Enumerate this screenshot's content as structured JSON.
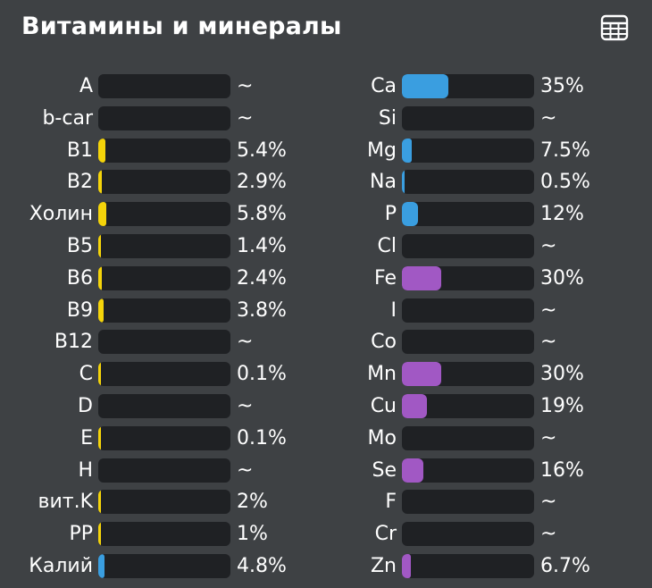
{
  "header": {
    "title": "Витамины и минералы",
    "table_icon": "table-grid-icon"
  },
  "colors": {
    "yellow": "#f5d40a",
    "blue": "#3a9ee0",
    "purple": "#a158c4"
  },
  "vitamins": [
    {
      "label": "A",
      "value": "~",
      "level": 0,
      "color": "yellow"
    },
    {
      "label": "b-car",
      "value": "~",
      "level": 0,
      "color": "yellow"
    },
    {
      "label": "B1",
      "value": "5.4%",
      "level": 0.054,
      "color": "yellow"
    },
    {
      "label": "B2",
      "value": "2.9%",
      "level": 0.029,
      "color": "yellow"
    },
    {
      "label": "Холин",
      "value": "5.8%",
      "level": 0.058,
      "color": "yellow"
    },
    {
      "label": "B5",
      "value": "1.4%",
      "level": 0.014,
      "color": "yellow"
    },
    {
      "label": "B6",
      "value": "2.4%",
      "level": 0.024,
      "color": "yellow"
    },
    {
      "label": "B9",
      "value": "3.8%",
      "level": 0.038,
      "color": "yellow"
    },
    {
      "label": "B12",
      "value": "~",
      "level": 0,
      "color": "yellow"
    },
    {
      "label": "C",
      "value": "0.1%",
      "level": 0.001,
      "color": "yellow"
    },
    {
      "label": "D",
      "value": "~",
      "level": 0,
      "color": "yellow"
    },
    {
      "label": "E",
      "value": "0.1%",
      "level": 0.001,
      "color": "yellow"
    },
    {
      "label": "H",
      "value": "~",
      "level": 0,
      "color": "yellow"
    },
    {
      "label": "вит.K",
      "value": "2%",
      "level": 0.02,
      "color": "yellow"
    },
    {
      "label": "PP",
      "value": "1%",
      "level": 0.01,
      "color": "yellow"
    },
    {
      "label": "Калий",
      "value": "4.8%",
      "level": 0.048,
      "color": "blue"
    }
  ],
  "minerals": [
    {
      "label": "Ca",
      "value": "35%",
      "level": 0.35,
      "color": "blue"
    },
    {
      "label": "Si",
      "value": "~",
      "level": 0,
      "color": "blue"
    },
    {
      "label": "Mg",
      "value": "7.5%",
      "level": 0.075,
      "color": "blue"
    },
    {
      "label": "Na",
      "value": "0.5%",
      "level": 0.005,
      "color": "blue"
    },
    {
      "label": "P",
      "value": "12%",
      "level": 0.12,
      "color": "blue"
    },
    {
      "label": "Cl",
      "value": "~",
      "level": 0,
      "color": "blue"
    },
    {
      "label": "Fe",
      "value": "30%",
      "level": 0.3,
      "color": "purple"
    },
    {
      "label": "I",
      "value": "~",
      "level": 0,
      "color": "purple"
    },
    {
      "label": "Co",
      "value": "~",
      "level": 0,
      "color": "purple"
    },
    {
      "label": "Mn",
      "value": "30%",
      "level": 0.3,
      "color": "purple"
    },
    {
      "label": "Cu",
      "value": "19%",
      "level": 0.19,
      "color": "purple"
    },
    {
      "label": "Mo",
      "value": "~",
      "level": 0,
      "color": "purple"
    },
    {
      "label": "Se",
      "value": "16%",
      "level": 0.16,
      "color": "purple"
    },
    {
      "label": "F",
      "value": "~",
      "level": 0,
      "color": "purple"
    },
    {
      "label": "Cr",
      "value": "~",
      "level": 0,
      "color": "purple"
    },
    {
      "label": "Zn",
      "value": "6.7%",
      "level": 0.067,
      "color": "purple"
    }
  ]
}
